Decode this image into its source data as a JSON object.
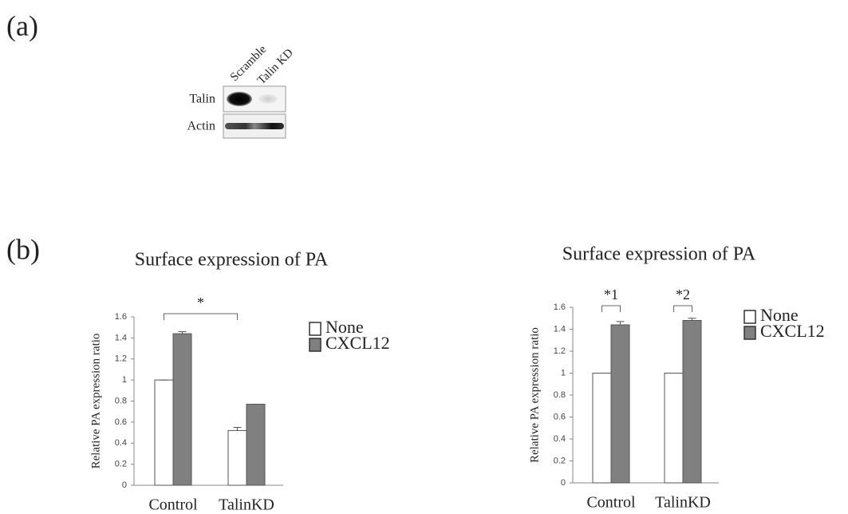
{
  "panel_a": {
    "label": "(a)",
    "lanes": [
      "Scramble",
      "Talin KD"
    ],
    "rows": [
      "Talin",
      "Actin"
    ]
  },
  "panel_b": {
    "label": "(b)"
  },
  "chart_data": [
    {
      "type": "bar",
      "title": "Surface expression of PA",
      "y_label": "Relative PA expression ratio",
      "categories": [
        "Control",
        "TalinKD"
      ],
      "series": [
        {
          "name": "None",
          "color": "#ffffff",
          "values": [
            1,
            0.52
          ],
          "errors": [
            0,
            0.03
          ]
        },
        {
          "name": "CXCL12",
          "color": "#808080",
          "values": [
            1.44,
            0.77
          ],
          "errors": [
            0.02,
            0
          ]
        }
      ],
      "ylim": [
        0,
        1.6
      ],
      "yticks": [
        0,
        0.2,
        0.4,
        0.6,
        0.8,
        1,
        1.2,
        1.4,
        1.6
      ],
      "annotations": [
        "*"
      ]
    },
    {
      "type": "bar",
      "title": "Surface expression of PA",
      "y_label": "Relative PA expression ratio",
      "categories": [
        "Control",
        "TalinKD"
      ],
      "series": [
        {
          "name": "None",
          "color": "#ffffff",
          "values": [
            1,
            1
          ],
          "errors": [
            0,
            0
          ]
        },
        {
          "name": "CXCL12",
          "color": "#808080",
          "values": [
            1.44,
            1.48
          ],
          "errors": [
            0.03,
            0.02
          ]
        }
      ],
      "ylim": [
        0,
        1.6
      ],
      "yticks": [
        0,
        0.2,
        0.4,
        0.6,
        0.8,
        1,
        1.2,
        1.4,
        1.6
      ],
      "annotations": [
        "*1",
        "*2"
      ]
    }
  ]
}
